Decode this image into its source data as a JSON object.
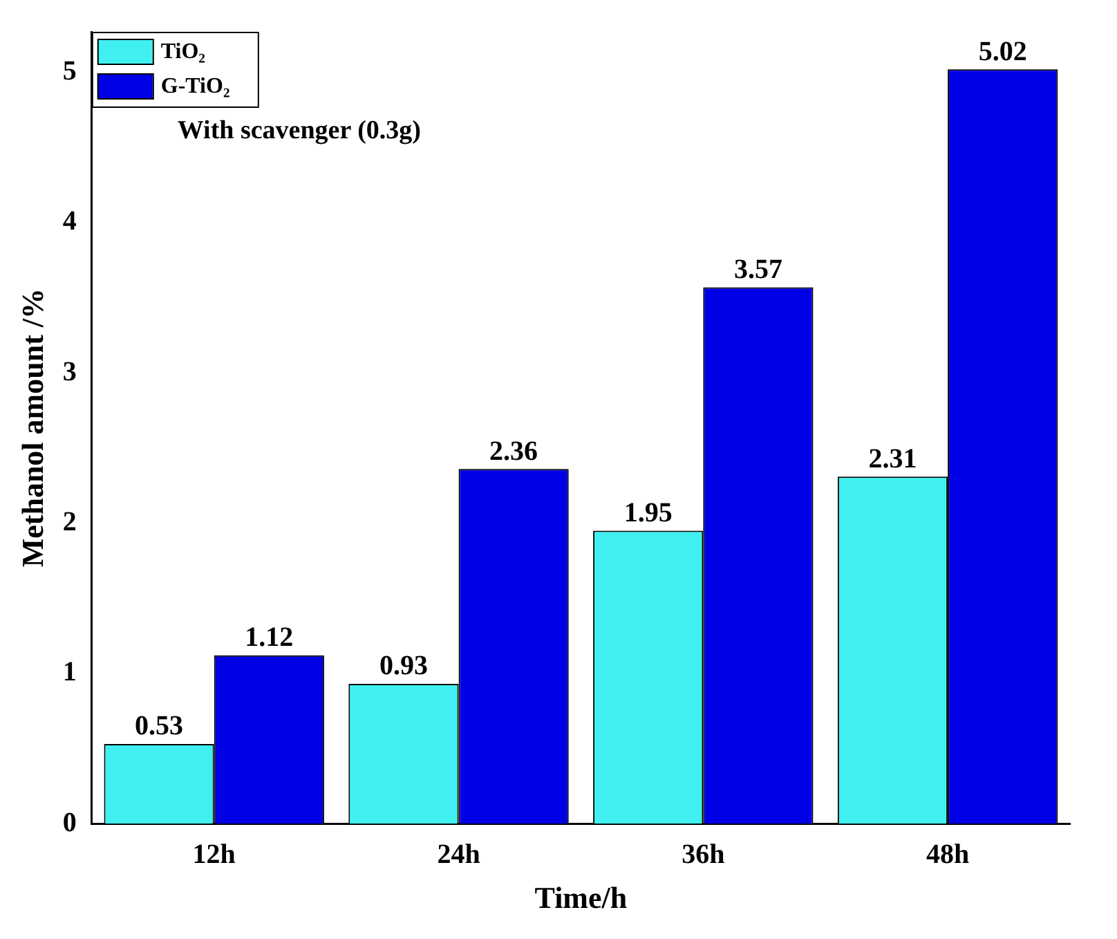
{
  "chart_data": {
    "type": "bar",
    "xlabel": "Time/h",
    "ylabel": "Methanol amount /%",
    "annotations": [
      "With scavenger (0.3g)"
    ],
    "categories": [
      "12h",
      "24h",
      "36h",
      "48h"
    ],
    "series": [
      {
        "name": "TiO₂",
        "color": "#40f0f0",
        "values": [
          0.53,
          0.93,
          1.95,
          2.31
        ]
      },
      {
        "name": "G-TiO₂",
        "color": "#0000e6",
        "values": [
          1.12,
          2.36,
          3.57,
          5.02
        ]
      }
    ],
    "ylim": [
      0,
      5.27
    ],
    "yticks": [
      0,
      1,
      2,
      3,
      4,
      5
    ],
    "data_labels": true,
    "legend": "top left",
    "grid": false
  }
}
